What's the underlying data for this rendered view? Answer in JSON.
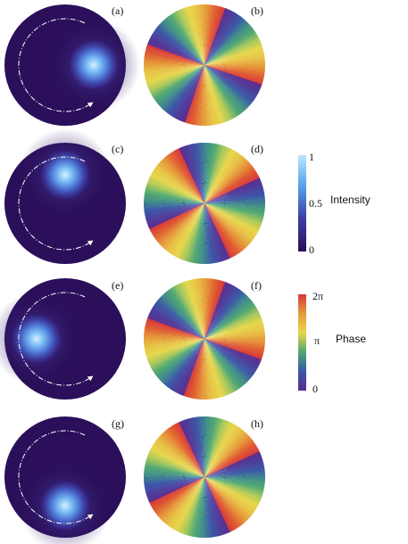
{
  "panels": [
    {
      "label": "(a)",
      "type": "intensity",
      "spot_angle_deg": 0
    },
    {
      "label": "(b)",
      "type": "phase",
      "phase_offset_deg": 20
    },
    {
      "label": "(c)",
      "type": "intensity",
      "spot_angle_deg": 90
    },
    {
      "label": "(d)",
      "type": "phase",
      "phase_offset_deg": 65
    },
    {
      "label": "(e)",
      "type": "intensity",
      "spot_angle_deg": 180
    },
    {
      "label": "(f)",
      "type": "phase",
      "phase_offset_deg": 110
    },
    {
      "label": "(g)",
      "type": "intensity",
      "spot_angle_deg": 270
    },
    {
      "label": "(h)",
      "type": "phase",
      "phase_offset_deg": 155
    }
  ],
  "phase_sectors_per_turn": 4,
  "intensity_colorbar": {
    "title": "Intensity",
    "ticks": [
      "1",
      "0.5",
      "0"
    ],
    "colors": [
      "#bfe4ff",
      "#56a8f0",
      "#3d3fa8",
      "#2b0f5a"
    ]
  },
  "phase_colorbar": {
    "title": "Phase",
    "ticks": [
      "2π",
      "π",
      "0"
    ],
    "colors": [
      "#d83838",
      "#e69a3a",
      "#e7d64a",
      "#4fa872",
      "#3a56a8",
      "#5a2a8f"
    ]
  },
  "colors": {
    "background_intensity": "#2b0f5a",
    "arc": "#ffffff"
  }
}
